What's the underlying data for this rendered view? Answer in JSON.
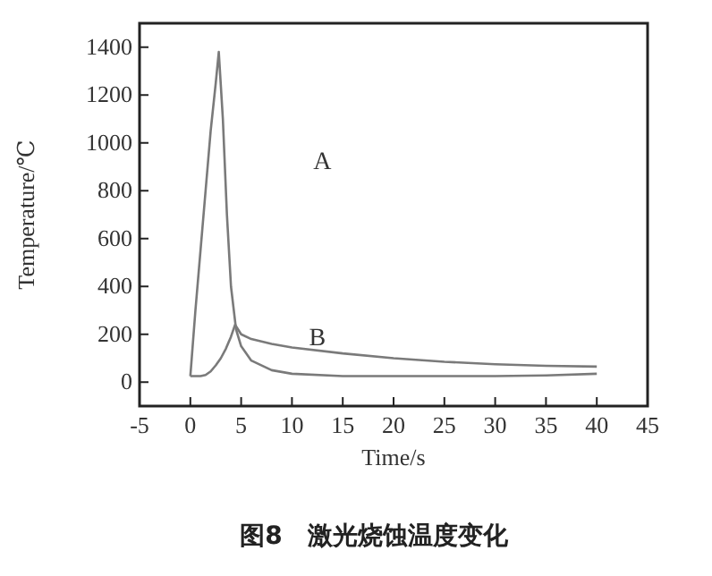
{
  "chart_data": {
    "type": "line",
    "title": "图8　激光烧蚀温度变化",
    "xlabel": "Time/s",
    "ylabel": "Temperature/℃",
    "xlim": [
      -5,
      45
    ],
    "ylim": [
      -100,
      1500
    ],
    "xticks": [
      -5,
      0,
      5,
      10,
      15,
      20,
      25,
      30,
      35,
      40,
      45
    ],
    "yticks": [
      0,
      200,
      400,
      600,
      800,
      1000,
      1200,
      1400
    ],
    "grid": false,
    "marker": "none",
    "line_style": "solid",
    "series": [
      {
        "color": "#7a7a7a",
        "x": [
          0,
          0.5,
          1,
          1.5,
          2,
          2.5,
          2.8,
          3.2,
          3.6,
          4,
          4.5,
          5,
          6,
          8,
          10,
          15,
          20,
          25,
          30,
          35,
          40
        ],
        "values": [
          25,
          300,
          550,
          800,
          1050,
          1250,
          1380,
          1100,
          700,
          400,
          220,
          150,
          90,
          50,
          35,
          25,
          25,
          25,
          25,
          28,
          35
        ]
      },
      {
        "color": "#7a7a7a",
        "x": [
          0,
          1,
          1.5,
          2,
          2.5,
          3,
          3.5,
          4,
          4.4,
          5,
          6,
          8,
          10,
          15,
          20,
          25,
          30,
          35,
          40
        ],
        "values": [
          25,
          25,
          30,
          45,
          70,
          100,
          140,
          190,
          240,
          200,
          180,
          160,
          145,
          120,
          100,
          85,
          75,
          68,
          65
        ]
      }
    ],
    "annotations": [
      "A",
      "B"
    ]
  }
}
